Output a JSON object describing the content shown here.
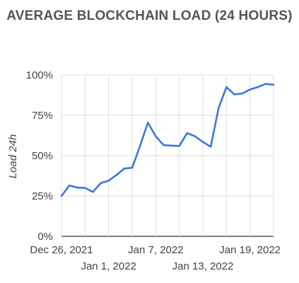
{
  "chart_data": {
    "type": "line",
    "title": "AVERAGE BLOCKCHAIN LOAD (24 HOURS)",
    "xlabel": "",
    "ylabel": "Load 24h",
    "y_ticks": [
      "0%",
      "25%",
      "50%",
      "75%",
      "100%"
    ],
    "ylim": [
      0,
      100
    ],
    "x_ticks": [
      "Dec 26, 2021",
      "Jan 1, 2022",
      "Jan 7, 2022",
      "Jan 13, 2022",
      "Jan 19, 2022"
    ],
    "xlim": [
      "2021-12-26",
      "2022-01-22"
    ],
    "grid": true,
    "series": [
      {
        "color": "#3b78d8",
        "x": [
          "2021-12-26",
          "2021-12-27",
          "2021-12-28",
          "2021-12-29",
          "2021-12-30",
          "2021-12-31",
          "2022-01-01",
          "2022-01-02",
          "2022-01-03",
          "2022-01-04",
          "2022-01-05",
          "2022-01-06",
          "2022-01-07",
          "2022-01-08",
          "2022-01-09",
          "2022-01-10",
          "2022-01-11",
          "2022-01-12",
          "2022-01-13",
          "2022-01-14",
          "2022-01-15",
          "2022-01-16",
          "2022-01-17",
          "2022-01-18",
          "2022-01-19",
          "2022-01-20",
          "2022-01-21",
          "2022-01-22"
        ],
        "values": [
          25,
          31.5,
          30.2,
          30,
          27.5,
          33,
          34.5,
          38,
          42,
          42.5,
          56,
          70.5,
          62,
          56.5,
          56.2,
          56,
          64,
          62,
          58.5,
          55.5,
          79.5,
          92.5,
          88,
          88.5,
          91,
          92.5,
          94.5,
          94
        ]
      }
    ]
  }
}
